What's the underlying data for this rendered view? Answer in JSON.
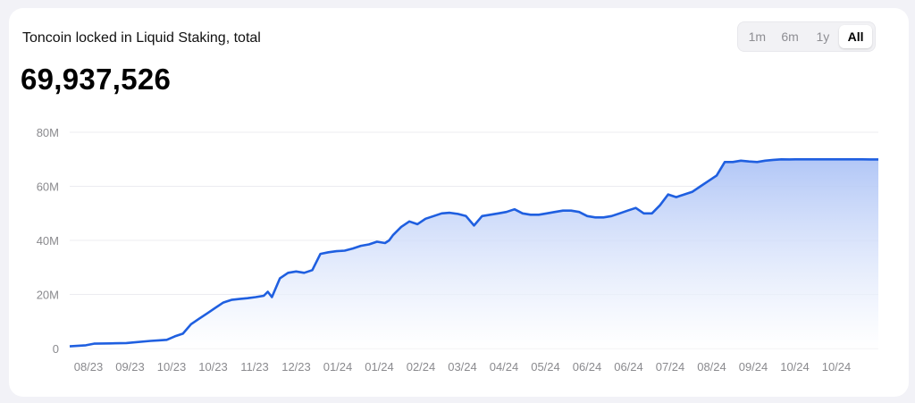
{
  "header": {
    "title": "Toncoin locked in Liquid Staking, total",
    "total": "69,937,526"
  },
  "range_selector": {
    "options": [
      {
        "label": "1m",
        "active": false
      },
      {
        "label": "6m",
        "active": false
      },
      {
        "label": "1y",
        "active": false
      },
      {
        "label": "All",
        "active": true
      }
    ]
  },
  "colors": {
    "line": "#1f5fe0",
    "fill_top": "#aec4f6",
    "fill_bottom": "#ffffff",
    "grid": "#ececf0"
  },
  "chart_data": {
    "type": "area",
    "title": "Toncoin locked in Liquid Staking, total",
    "xlabel": "",
    "ylabel": "",
    "ylim": [
      0,
      80000000
    ],
    "y_ticks": [
      {
        "value": 0,
        "label": "0"
      },
      {
        "value": 20000000,
        "label": "20M"
      },
      {
        "value": 40000000,
        "label": "40M"
      },
      {
        "value": 60000000,
        "label": "60M"
      },
      {
        "value": 80000000,
        "label": "80M"
      }
    ],
    "x_tick_labels": [
      "08/23",
      "09/23",
      "10/23",
      "10/23",
      "11/23",
      "12/23",
      "01/24",
      "01/24",
      "02/24",
      "03/24",
      "04/24",
      "05/24",
      "06/24",
      "06/24",
      "07/24",
      "08/24",
      "09/24",
      "10/24",
      "10/24"
    ],
    "grid": true,
    "legend": "none",
    "series": [
      {
        "x": [
          0,
          0.02,
          0.03,
          0.05,
          0.07,
          0.1,
          0.11,
          0.12,
          0.13,
          0.14,
          0.15,
          0.16,
          0.17,
          0.18,
          0.19,
          0.2,
          0.21,
          0.22,
          0.23,
          0.24,
          0.245,
          0.25,
          0.26,
          0.27,
          0.28,
          0.29,
          0.3,
          0.31,
          0.32,
          0.33,
          0.34,
          0.35,
          0.36,
          0.37,
          0.38,
          0.39,
          0.395,
          0.4,
          0.41,
          0.42,
          0.43,
          0.44,
          0.45,
          0.46,
          0.47,
          0.48,
          0.49,
          0.5,
          0.51,
          0.52,
          0.53,
          0.54,
          0.55,
          0.56,
          0.57,
          0.58,
          0.59,
          0.6,
          0.61,
          0.62,
          0.63,
          0.64,
          0.65,
          0.66,
          0.67,
          0.68,
          0.69,
          0.7,
          0.71,
          0.72,
          0.73,
          0.74,
          0.75,
          0.76,
          0.77,
          0.78,
          0.79,
          0.8,
          0.81,
          0.82,
          0.83,
          0.84,
          0.85,
          0.86,
          0.87,
          0.88,
          0.89,
          0.9,
          0.91,
          0.92,
          0.93,
          0.94,
          0.95,
          0.96,
          0.97,
          0.98,
          0.99,
          1.0
        ],
        "values": [
          800000,
          1200000,
          1800000,
          1900000,
          2000000,
          2800000,
          3000000,
          3200000,
          4500000,
          5500000,
          9000000,
          11000000,
          13000000,
          15000000,
          17000000,
          18000000,
          18300000,
          18600000,
          19000000,
          19500000,
          21000000,
          19000000,
          26000000,
          28000000,
          28500000,
          28000000,
          29000000,
          35000000,
          35600000,
          36000000,
          36200000,
          37000000,
          38000000,
          38500000,
          39500000,
          39000000,
          40000000,
          42000000,
          45000000,
          47000000,
          46000000,
          48000000,
          49000000,
          50000000,
          50200000,
          49800000,
          49000000,
          45500000,
          49000000,
          49500000,
          50000000,
          50500000,
          51500000,
          50000000,
          49500000,
          49500000,
          50000000,
          50500000,
          51000000,
          51000000,
          50500000,
          49000000,
          48500000,
          48500000,
          49000000,
          50000000,
          51000000,
          52000000,
          50000000,
          50000000,
          53000000,
          57000000,
          56000000,
          57000000,
          58000000,
          60000000,
          62000000,
          64000000,
          69000000,
          69000000,
          69500000,
          69200000,
          69000000,
          69500000,
          69800000,
          70000000,
          69937526,
          70000000,
          70000000,
          70000000,
          70000000,
          70000000,
          70000000,
          70000000,
          70000000,
          70000000,
          69937526,
          69937526
        ]
      }
    ]
  }
}
